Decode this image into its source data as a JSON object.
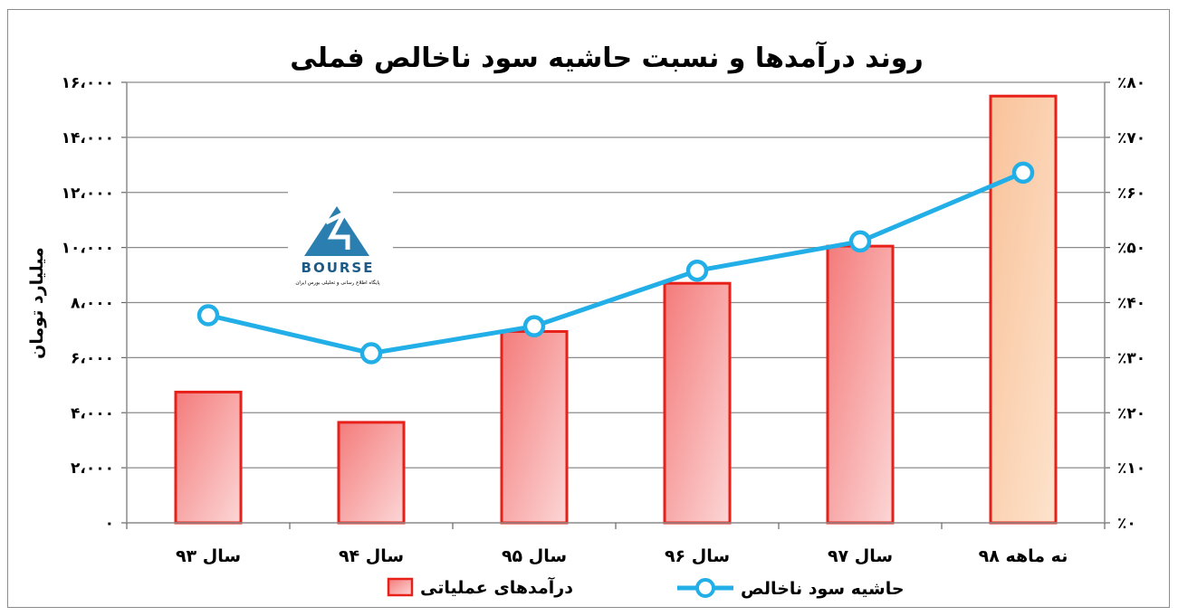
{
  "chart_data": {
    "type": "bar+line",
    "title": "روند درآمدها و نسبت حاشیه سود ناخالص فملی",
    "ylabel": "میلیارد تومان",
    "categories": [
      "سال ۹۳",
      "سال ۹۴",
      "سال ۹۵",
      "سال ۹۶",
      "سال ۹۷",
      "نه ماهه ۹۸"
    ],
    "y_left_ticks": [
      "۰",
      "۲،۰۰۰",
      "۴،۰۰۰",
      "۶،۰۰۰",
      "۸،۰۰۰",
      "۱۰،۰۰۰",
      "۱۲،۰۰۰",
      "۱۴،۰۰۰",
      "۱۶،۰۰۰"
    ],
    "y_right_ticks": [
      "٪۰",
      "٪۱۰",
      "٪۲۰",
      "٪۳۰",
      "٪۴۰",
      "٪۵۰",
      "٪۶۰",
      "٪۷۰",
      "٪۸۰"
    ],
    "ylim_left": [
      0,
      16000
    ],
    "ylim_right": [
      0,
      80
    ],
    "series": [
      {
        "name": "درآمدهای عملیاتی",
        "kind": "bar",
        "axis": "left",
        "values": [
          4750,
          3650,
          6950,
          8700,
          10050,
          15500
        ],
        "color": "#e8201a",
        "fill": "#f79a9a",
        "highlight_fill": "#fbd5b4"
      },
      {
        "name": "حاشیه سود ناخالص",
        "kind": "line",
        "axis": "right",
        "values": [
          37.7,
          30.8,
          35.7,
          45.8,
          51.1,
          63.6
        ],
        "color": "#22aee6"
      }
    ],
    "grid": true,
    "legend_position": "bottom"
  },
  "logo": {
    "text": "BOURSE",
    "subtitle": "پایگاه اطلاع رسانی و تحلیلی بورس ایران"
  }
}
